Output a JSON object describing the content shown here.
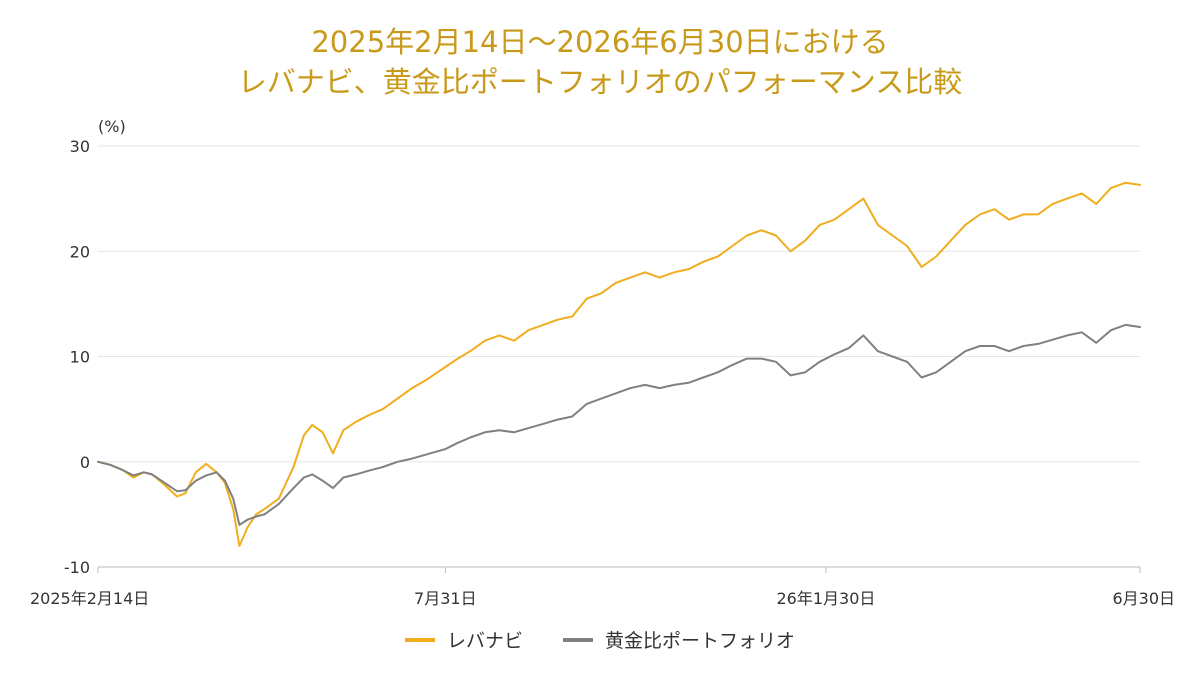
{
  "chart_data": {
    "type": "line",
    "title": [
      "2025年2月14日～2026年6月30日における",
      "レバナビ、黄金比ポートフォリオのパフォーマンス比較"
    ],
    "y_unit": "(%)",
    "ylim": [
      -10,
      30
    ],
    "y_ticks": [
      "30",
      "20",
      "10",
      "0",
      "-10"
    ],
    "y_tick_values": [
      30,
      20,
      10,
      0,
      -10
    ],
    "x_range": [
      "2025-02-14",
      "2026-06-30"
    ],
    "x_ticks": [
      "2025年2月14日",
      "7月31日",
      "26年1月30日",
      "6月30日"
    ],
    "x_tick_dates": [
      "2025-02-14",
      "2025-07-31",
      "2026-01-30",
      "2026-06-30"
    ],
    "grid": true,
    "legend_position": "bottom",
    "colors": {
      "series1": "#f0ad1e",
      "series2": "#808080",
      "title": "#c99a1a"
    },
    "series": [
      {
        "name": "レバナビ",
        "points": [
          [
            "2025-02-14",
            0
          ],
          [
            "2025-02-20",
            -0.3
          ],
          [
            "2025-02-26",
            -0.8
          ],
          [
            "2025-03-03",
            -1.5
          ],
          [
            "2025-03-08",
            -1.0
          ],
          [
            "2025-03-12",
            -1.2
          ],
          [
            "2025-03-18",
            -2.2
          ],
          [
            "2025-03-24",
            -3.3
          ],
          [
            "2025-03-28",
            -3.0
          ],
          [
            "2025-04-02",
            -1.0
          ],
          [
            "2025-04-07",
            -0.2
          ],
          [
            "2025-04-12",
            -1.0
          ],
          [
            "2025-04-16",
            -2.0
          ],
          [
            "2025-04-20",
            -4.5
          ],
          [
            "2025-04-23",
            -8.0
          ],
          [
            "2025-04-27",
            -6.2
          ],
          [
            "2025-05-01",
            -5.0
          ],
          [
            "2025-05-05",
            -4.5
          ],
          [
            "2025-05-12",
            -3.5
          ],
          [
            "2025-05-19",
            -0.5
          ],
          [
            "2025-05-24",
            2.5
          ],
          [
            "2025-05-28",
            3.5
          ],
          [
            "2025-06-02",
            2.8
          ],
          [
            "2025-06-07",
            0.8
          ],
          [
            "2025-06-12",
            3.0
          ],
          [
            "2025-06-18",
            3.8
          ],
          [
            "2025-06-25",
            4.5
          ],
          [
            "2025-07-01",
            5.0
          ],
          [
            "2025-07-08",
            6.0
          ],
          [
            "2025-07-15",
            7.0
          ],
          [
            "2025-07-22",
            7.8
          ],
          [
            "2025-07-31",
            9.0
          ],
          [
            "2025-08-06",
            9.8
          ],
          [
            "2025-08-12",
            10.5
          ],
          [
            "2025-08-19",
            11.5
          ],
          [
            "2025-08-26",
            12.0
          ],
          [
            "2025-09-02",
            11.5
          ],
          [
            "2025-09-09",
            12.5
          ],
          [
            "2025-09-16",
            13.0
          ],
          [
            "2025-09-23",
            13.5
          ],
          [
            "2025-09-30",
            13.8
          ],
          [
            "2025-10-07",
            15.5
          ],
          [
            "2025-10-14",
            16.0
          ],
          [
            "2025-10-21",
            17.0
          ],
          [
            "2025-10-28",
            17.5
          ],
          [
            "2025-11-04",
            18.0
          ],
          [
            "2025-11-11",
            17.5
          ],
          [
            "2025-11-18",
            18.0
          ],
          [
            "2025-11-25",
            18.3
          ],
          [
            "2025-12-02",
            19.0
          ],
          [
            "2025-12-09",
            19.5
          ],
          [
            "2025-12-16",
            20.5
          ],
          [
            "2025-12-23",
            21.5
          ],
          [
            "2025-12-30",
            22.0
          ],
          [
            "2026-01-06",
            21.5
          ],
          [
            "2026-01-13",
            20.0
          ],
          [
            "2026-01-20",
            21.0
          ],
          [
            "2026-01-27",
            22.5
          ],
          [
            "2026-02-03",
            23.0
          ],
          [
            "2026-02-10",
            24.0
          ],
          [
            "2026-02-17",
            25.0
          ],
          [
            "2026-02-24",
            22.5
          ],
          [
            "2026-03-03",
            21.5
          ],
          [
            "2026-03-10",
            20.5
          ],
          [
            "2026-03-17",
            18.5
          ],
          [
            "2026-03-24",
            19.5
          ],
          [
            "2026-03-31",
            21.0
          ],
          [
            "2026-04-07",
            22.5
          ],
          [
            "2026-04-14",
            23.5
          ],
          [
            "2026-04-21",
            24.0
          ],
          [
            "2026-04-28",
            23.0
          ],
          [
            "2026-05-05",
            23.5
          ],
          [
            "2026-05-12",
            23.5
          ],
          [
            "2026-05-19",
            24.5
          ],
          [
            "2026-05-26",
            25.0
          ],
          [
            "2026-06-02",
            25.5
          ],
          [
            "2026-06-09",
            24.5
          ],
          [
            "2026-06-16",
            26.0
          ],
          [
            "2026-06-23",
            26.5
          ],
          [
            "2026-06-30",
            26.3
          ]
        ]
      },
      {
        "name": "黄金比ポートフォリオ",
        "points": [
          [
            "2025-02-14",
            0
          ],
          [
            "2025-02-20",
            -0.3
          ],
          [
            "2025-02-26",
            -0.8
          ],
          [
            "2025-03-03",
            -1.3
          ],
          [
            "2025-03-08",
            -1.0
          ],
          [
            "2025-03-12",
            -1.2
          ],
          [
            "2025-03-18",
            -2.0
          ],
          [
            "2025-03-24",
            -2.8
          ],
          [
            "2025-03-28",
            -2.7
          ],
          [
            "2025-04-02",
            -1.8
          ],
          [
            "2025-04-07",
            -1.3
          ],
          [
            "2025-04-12",
            -1.0
          ],
          [
            "2025-04-16",
            -1.8
          ],
          [
            "2025-04-20",
            -3.5
          ],
          [
            "2025-04-23",
            -6.0
          ],
          [
            "2025-04-27",
            -5.5
          ],
          [
            "2025-05-01",
            -5.2
          ],
          [
            "2025-05-05",
            -5.0
          ],
          [
            "2025-05-12",
            -4.0
          ],
          [
            "2025-05-19",
            -2.5
          ],
          [
            "2025-05-24",
            -1.5
          ],
          [
            "2025-05-28",
            -1.2
          ],
          [
            "2025-06-02",
            -1.8
          ],
          [
            "2025-06-07",
            -2.5
          ],
          [
            "2025-06-12",
            -1.5
          ],
          [
            "2025-06-18",
            -1.2
          ],
          [
            "2025-06-25",
            -0.8
          ],
          [
            "2025-07-01",
            -0.5
          ],
          [
            "2025-07-08",
            0.0
          ],
          [
            "2025-07-15",
            0.3
          ],
          [
            "2025-07-22",
            0.7
          ],
          [
            "2025-07-31",
            1.2
          ],
          [
            "2025-08-06",
            1.8
          ],
          [
            "2025-08-12",
            2.3
          ],
          [
            "2025-08-19",
            2.8
          ],
          [
            "2025-08-26",
            3.0
          ],
          [
            "2025-09-02",
            2.8
          ],
          [
            "2025-09-09",
            3.2
          ],
          [
            "2025-09-16",
            3.6
          ],
          [
            "2025-09-23",
            4.0
          ],
          [
            "2025-09-30",
            4.3
          ],
          [
            "2025-10-07",
            5.5
          ],
          [
            "2025-10-14",
            6.0
          ],
          [
            "2025-10-21",
            6.5
          ],
          [
            "2025-10-28",
            7.0
          ],
          [
            "2025-11-04",
            7.3
          ],
          [
            "2025-11-11",
            7.0
          ],
          [
            "2025-11-18",
            7.3
          ],
          [
            "2025-11-25",
            7.5
          ],
          [
            "2025-12-02",
            8.0
          ],
          [
            "2025-12-09",
            8.5
          ],
          [
            "2025-12-16",
            9.2
          ],
          [
            "2025-12-23",
            9.8
          ],
          [
            "2025-12-30",
            9.8
          ],
          [
            "2026-01-06",
            9.5
          ],
          [
            "2026-01-13",
            8.2
          ],
          [
            "2026-01-20",
            8.5
          ],
          [
            "2026-01-27",
            9.5
          ],
          [
            "2026-02-03",
            10.2
          ],
          [
            "2026-02-10",
            10.8
          ],
          [
            "2026-02-17",
            12.0
          ],
          [
            "2026-02-24",
            10.5
          ],
          [
            "2026-03-03",
            10.0
          ],
          [
            "2026-03-10",
            9.5
          ],
          [
            "2026-03-17",
            8.0
          ],
          [
            "2026-03-24",
            8.5
          ],
          [
            "2026-03-31",
            9.5
          ],
          [
            "2026-04-07",
            10.5
          ],
          [
            "2026-04-14",
            11.0
          ],
          [
            "2026-04-21",
            11.0
          ],
          [
            "2026-04-28",
            10.5
          ],
          [
            "2026-05-05",
            11.0
          ],
          [
            "2026-05-12",
            11.2
          ],
          [
            "2026-05-19",
            11.6
          ],
          [
            "2026-05-26",
            12.0
          ],
          [
            "2026-06-02",
            12.3
          ],
          [
            "2026-06-09",
            11.3
          ],
          [
            "2026-06-16",
            12.5
          ],
          [
            "2026-06-23",
            13.0
          ],
          [
            "2026-06-30",
            12.8
          ]
        ]
      }
    ]
  }
}
